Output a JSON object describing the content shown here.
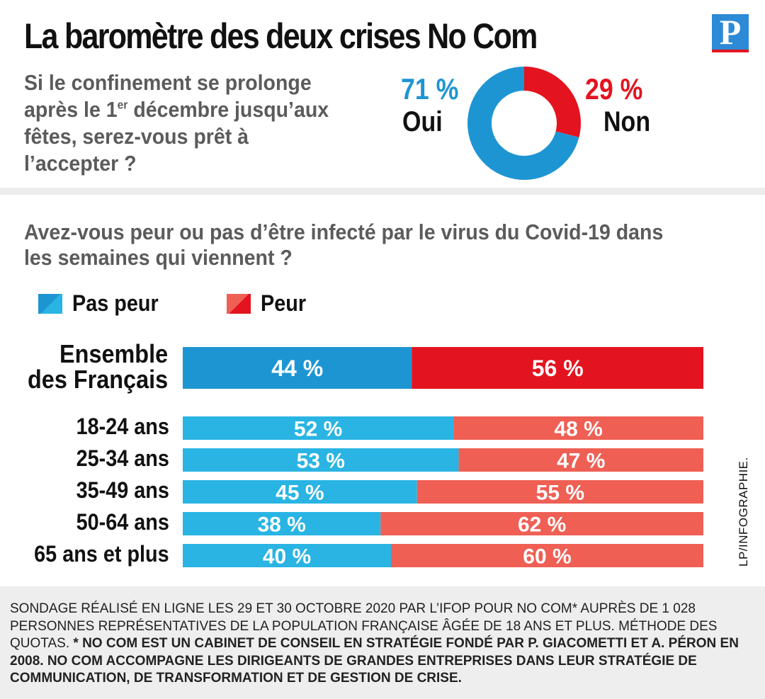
{
  "header": {
    "title": "La baromètre des deux crises No Com",
    "logo_letter": "P"
  },
  "question1": {
    "text_before_sup": "Si le confinement se prolonge après le 1",
    "sup": "er",
    "text_after_sup": " décembre jusqu’aux fêtes, serez-vous prêt à l’accepter ?"
  },
  "poll": {
    "oui_pct": "71 %",
    "oui_label": "Oui",
    "non_pct": "29 %",
    "non_label": "Non",
    "oui_value": 71,
    "non_value": 29,
    "oui_color": "#1e95d3",
    "non_color": "#e3141f"
  },
  "question2": {
    "text": "Avez-vous peur ou pas d’être infecté par le virus du Covid-19 dans les semaines qui viennent ?"
  },
  "legend": {
    "pas_peur": "Pas peur",
    "peur": "Peur"
  },
  "chart_data": {
    "type": "bar",
    "orientation": "horizontal",
    "stacked": true,
    "percent": true,
    "categories": [
      "Ensemble des Français",
      "18-24 ans",
      "25-34 ans",
      "35-49 ans",
      "50-64 ans",
      "65 ans et plus"
    ],
    "series": [
      {
        "name": "Pas peur",
        "values": [
          44,
          52,
          53,
          45,
          38,
          40
        ],
        "labels": [
          "44 %",
          "52 %",
          "53 %",
          "45 %",
          "38 %",
          "40 %"
        ]
      },
      {
        "name": "Peur",
        "values": [
          56,
          48,
          47,
          55,
          62,
          60
        ],
        "labels": [
          "56 %",
          "48 %",
          "47 %",
          "55 %",
          "62 %",
          "60 %"
        ]
      }
    ],
    "colors": {
      "main_pas_peur": "#1e95d3",
      "main_peur": "#e3141f",
      "pas_peur": "#29b4e3",
      "peur": "#ef5f54"
    },
    "legend_placement": "top-left"
  },
  "credit": "LP/INFOGRAPHIE.",
  "footer": {
    "normal": "Sondage réalisé en ligne les 29 et 30 octobre 2020 par l’Ifop pour No Com* auprès de 1 028 personnes représentatives de la population française âgée de 18 ans et plus. Méthode des quotas. ",
    "bold": "* No Com est un cabinet de conseil en stratégie fondé par P. Giacometti et A. Péron en 2008. No Com accompagne les dirigeants de grandes entreprises dans leur stratégie de communication, de transformation et de gestion de crise."
  }
}
